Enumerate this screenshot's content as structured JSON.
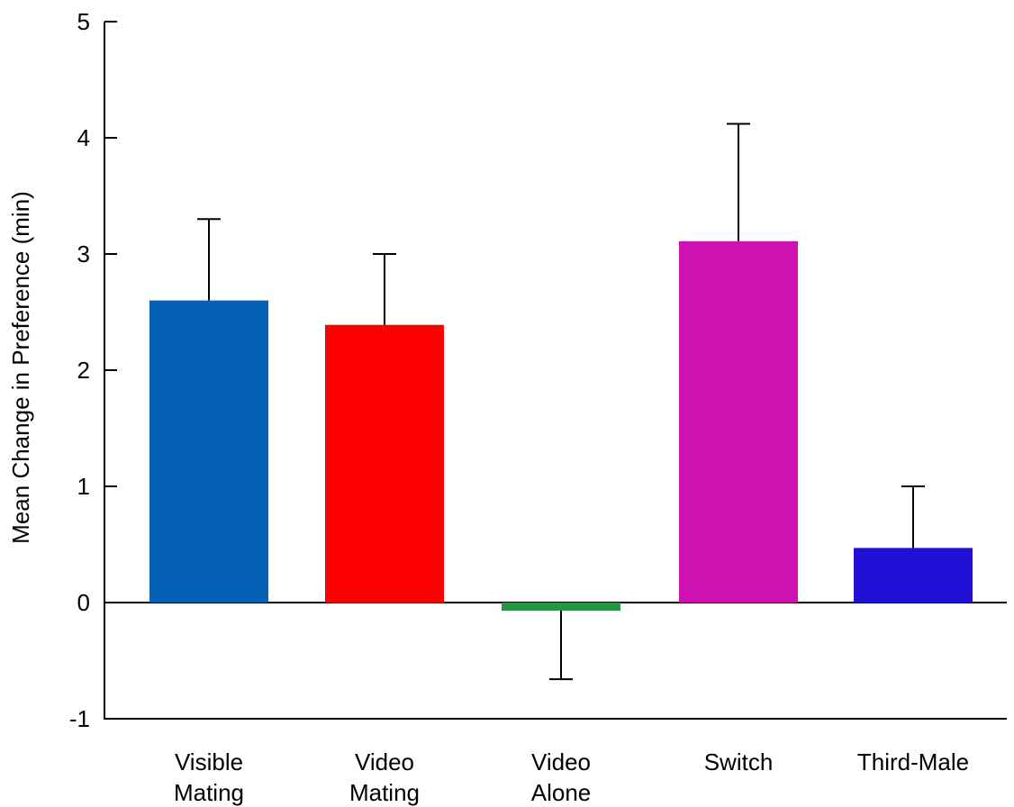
{
  "chart_data": {
    "type": "bar",
    "title": "",
    "xlabel": "",
    "ylabel": "Mean Change in Preference (min)",
    "ylim": [
      -1,
      5
    ],
    "yticks": [
      "-1",
      "0",
      "1",
      "2",
      "3",
      "4",
      "5"
    ],
    "grid": false,
    "legend": "none",
    "categories": [
      [
        "Visible",
        "Mating"
      ],
      [
        "Video",
        "Mating"
      ],
      [
        "Video",
        "Alone"
      ],
      [
        "Switch"
      ],
      [
        "Third-Male"
      ]
    ],
    "values": [
      2.6,
      2.39,
      -0.07,
      3.11,
      0.47
    ],
    "error_upper": [
      3.3,
      3.0,
      -0.66,
      4.12,
      1.0
    ],
    "colors": [
      "#0461b6",
      "#fd0100",
      "#1a9e3f",
      "#d011b2",
      "#2111d6"
    ]
  }
}
